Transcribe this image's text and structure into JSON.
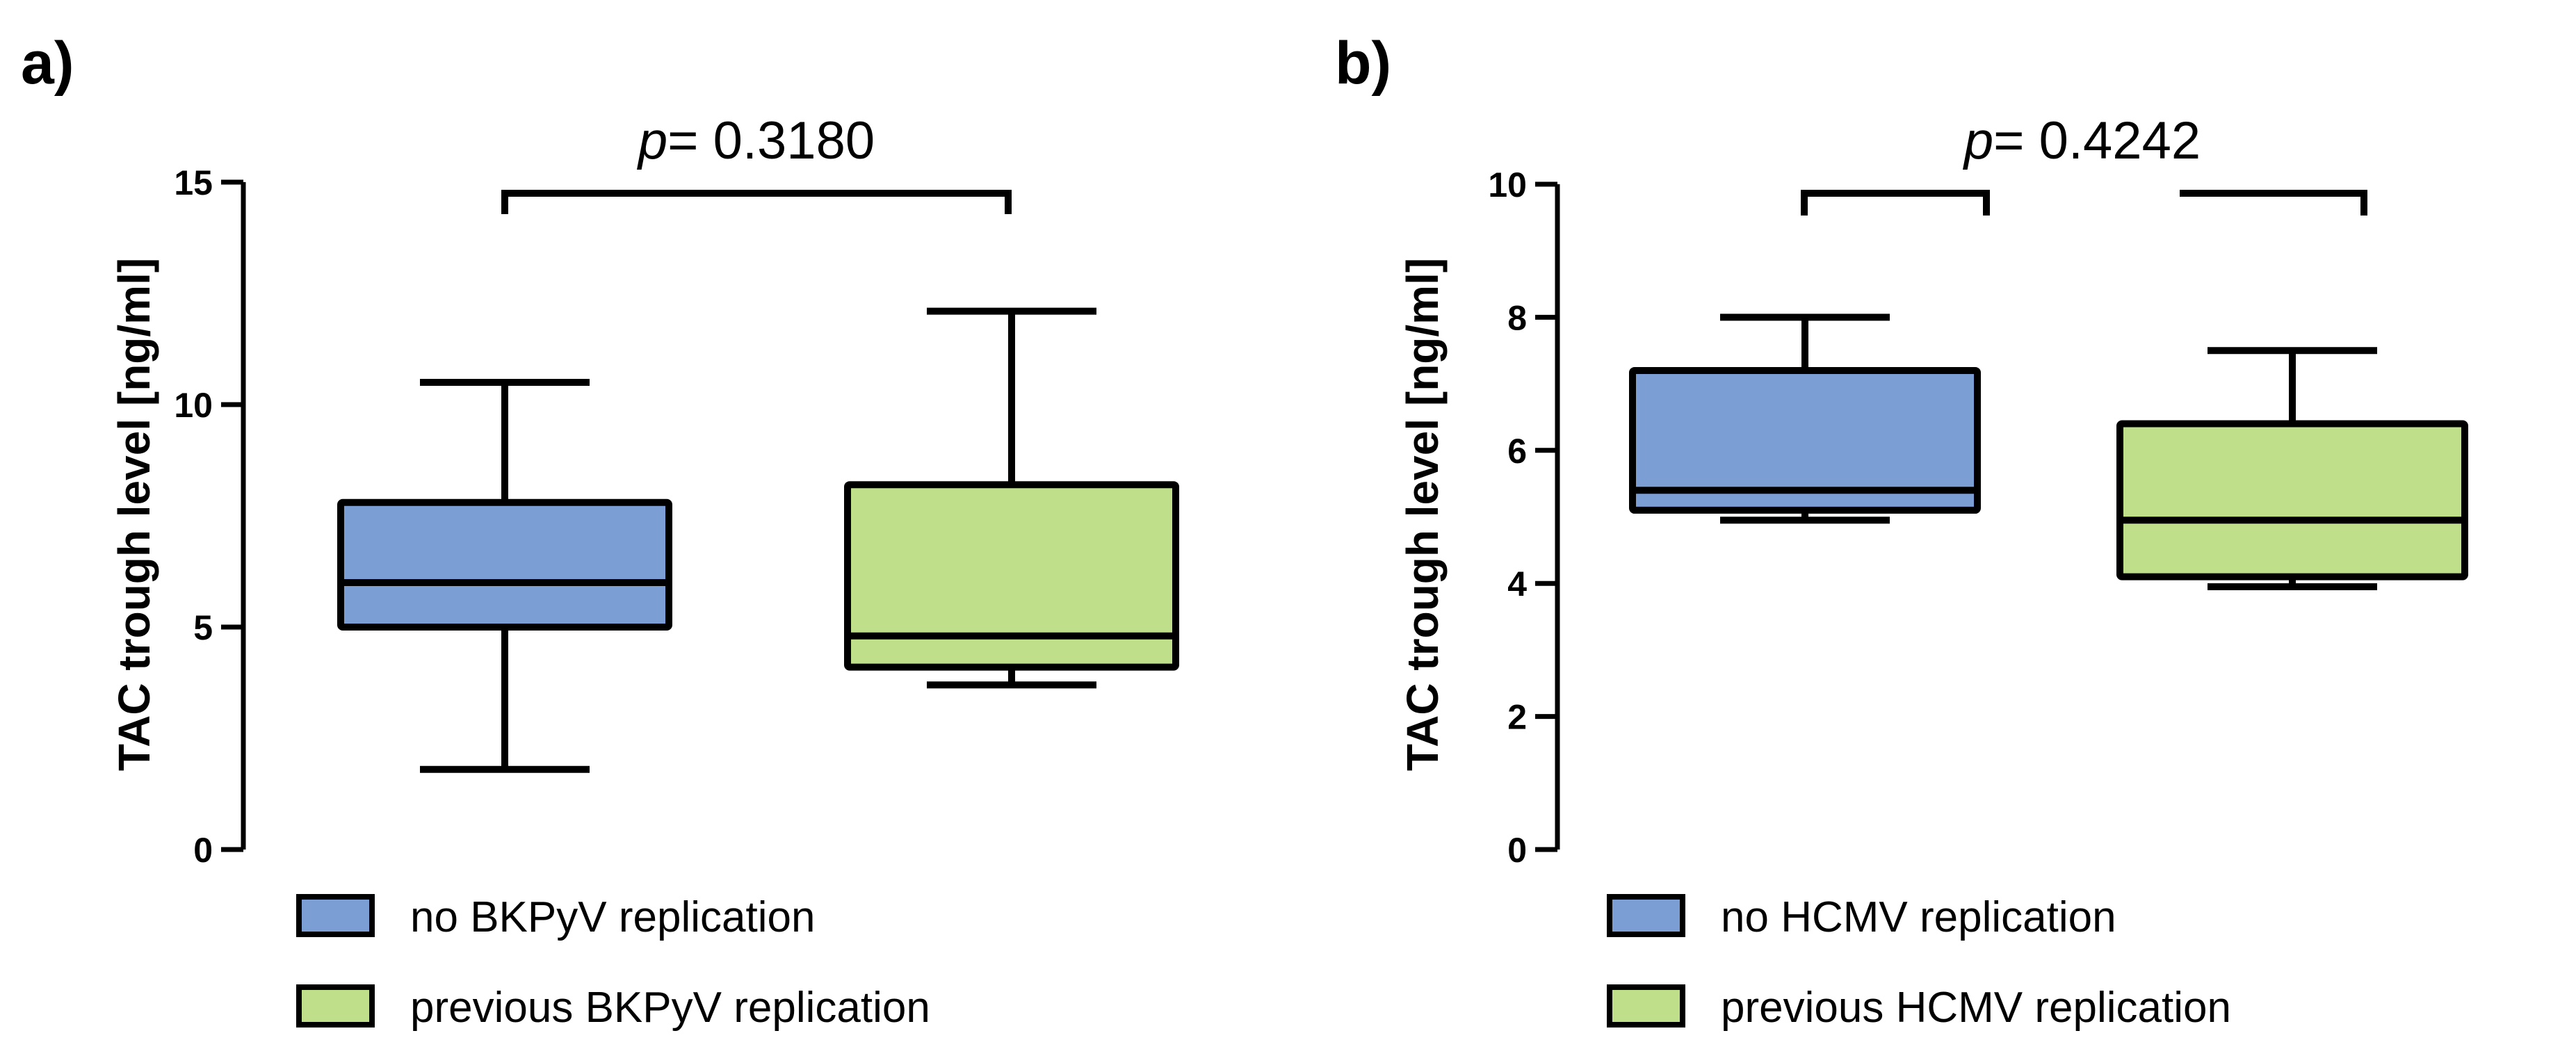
{
  "chart_data": [
    {
      "panel_label": "a)",
      "type": "box",
      "ylabel": "TAC trough level [ng/ml]",
      "ylim": [
        0,
        15
      ],
      "yticks": [
        0,
        5,
        10,
        15
      ],
      "tick_labels": [
        "0",
        "5",
        "10",
        "15"
      ],
      "comparison": {
        "p_prefix": "p",
        "p_value": "= 0.3180"
      },
      "groups": [
        {
          "name": "no BKPyV replication",
          "color": "#7b9fd4",
          "min": 1.8,
          "q1": 5.0,
          "median": 6.0,
          "q3": 7.8,
          "max": 10.5
        },
        {
          "name": "previous BKPyV replication",
          "color": "#bfdf8a",
          "min": 3.7,
          "q1": 4.1,
          "median": 4.8,
          "q3": 8.2,
          "max": 12.1
        }
      ]
    },
    {
      "panel_label": "b)",
      "type": "box",
      "ylabel": "TAC trough level [ng/ml]",
      "ylim": [
        0,
        10
      ],
      "yticks": [
        0,
        2,
        4,
        6,
        8,
        10
      ],
      "tick_labels": [
        "0",
        "2",
        "4",
        "6",
        "8",
        "10"
      ],
      "comparison": {
        "p_prefix": "p",
        "p_value": "= 0.4242"
      },
      "groups": [
        {
          "name": "no HCMV replication",
          "color": "#7b9fd4",
          "min": 4.95,
          "q1": 5.1,
          "median": 5.4,
          "q3": 7.2,
          "max": 8.0
        },
        {
          "name": "previous HCMV replication",
          "color": "#bfdf8a",
          "min": 3.95,
          "q1": 4.1,
          "median": 4.95,
          "q3": 6.4,
          "max": 7.5
        }
      ]
    }
  ]
}
